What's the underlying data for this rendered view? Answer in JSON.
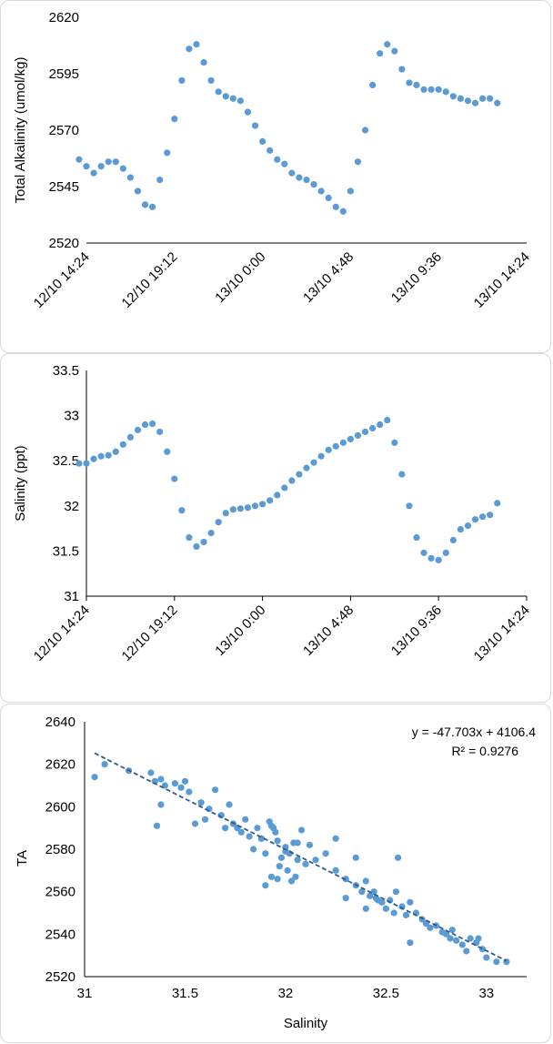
{
  "colors": {
    "marker": "#5b9bd5",
    "axis": "#000000",
    "trendline": "#2e5b8f",
    "panel_border": "#d9d9d9"
  },
  "chart_data": [
    {
      "type": "scatter",
      "title": "",
      "xlabel": "",
      "ylabel": "Total Alkalinity (umol/kg)",
      "ylim": [
        2520,
        2620
      ],
      "yticks": [
        2520,
        2545,
        2570,
        2595,
        2620
      ],
      "x_tick_labels": [
        "12/10 14:24",
        "12/10 19:12",
        "13/10 0:00",
        "13/10 4:48",
        "13/10 9:36",
        "13/10 14:24"
      ],
      "x_unit": "hours from 12/10 14:24",
      "xlim": [
        0,
        24
      ],
      "grid": false,
      "series": [
        {
          "x": [
            -0.4,
            0,
            0.4,
            0.8,
            1.2,
            1.6,
            2.0,
            2.4,
            2.8,
            3.2,
            3.6,
            4.0,
            4.4,
            4.8,
            5.2,
            5.6,
            6.0,
            6.4,
            6.8,
            7.2,
            7.6,
            8.0,
            8.4,
            8.8,
            9.2,
            9.6,
            10.0,
            10.4,
            10.8,
            11.2,
            11.6,
            12.0,
            12.4,
            12.8,
            13.2,
            13.6,
            14.0,
            14.4,
            14.8,
            15.2,
            15.6,
            16.0,
            16.4,
            16.8,
            17.2,
            17.6,
            18.0,
            18.4,
            18.8,
            19.2,
            19.6,
            20.0,
            20.4,
            20.8,
            21.2,
            21.6,
            22.0,
            22.4
          ],
          "y": [
            2557,
            2554,
            2551,
            2554,
            2556,
            2556,
            2553,
            2549,
            2543,
            2537,
            2536,
            2548,
            2560,
            2575,
            2592,
            2606,
            2608,
            2600,
            2592,
            2587,
            2585,
            2584,
            2583,
            2578,
            2572,
            2565,
            2561,
            2557,
            2555,
            2551,
            2549,
            2548,
            2546,
            2543,
            2540,
            2536,
            2534,
            2543,
            2556,
            2570,
            2590,
            2604,
            2608,
            2605,
            2597,
            2591,
            2590,
            2588,
            2588,
            2588,
            2587,
            2585,
            2584,
            2583,
            2582,
            2584,
            2584,
            2582
          ]
        }
      ]
    },
    {
      "type": "scatter",
      "title": "",
      "xlabel": "",
      "ylabel": "Salinity (ppt)",
      "ylim": [
        31,
        33.5
      ],
      "yticks": [
        "31",
        "31.5",
        "32",
        "32.5",
        "33",
        "33.5"
      ],
      "x_tick_labels": [
        "12/10 14:24",
        "12/10 19:12",
        "13/10 0:00",
        "13/10 4:48",
        "13/10 9:36",
        "13/10 14:24"
      ],
      "x_unit": "hours from 12/10 14:24",
      "xlim": [
        0,
        24
      ],
      "grid": false,
      "series": [
        {
          "x": [
            -0.4,
            0,
            0.4,
            0.8,
            1.2,
            1.6,
            2.0,
            2.4,
            2.8,
            3.2,
            3.6,
            4.0,
            4.4,
            4.8,
            5.2,
            5.6,
            6.0,
            6.4,
            6.8,
            7.2,
            7.6,
            8.0,
            8.4,
            8.8,
            9.2,
            9.6,
            10.0,
            10.4,
            10.8,
            11.2,
            11.6,
            12.0,
            12.4,
            12.8,
            13.2,
            13.6,
            14.0,
            14.4,
            14.8,
            15.2,
            15.6,
            16.0,
            16.4,
            16.8,
            17.2,
            17.6,
            18.0,
            18.4,
            18.8,
            19.2,
            19.6,
            20.0,
            20.4,
            20.8,
            21.2,
            21.6,
            22.0,
            22.4
          ],
          "y": [
            32.47,
            32.47,
            32.52,
            32.55,
            32.56,
            32.6,
            32.68,
            32.76,
            32.84,
            32.9,
            32.91,
            32.82,
            32.6,
            32.3,
            31.95,
            31.65,
            31.55,
            31.6,
            31.7,
            31.82,
            31.92,
            31.96,
            31.97,
            31.98,
            32.0,
            32.02,
            32.06,
            32.12,
            32.2,
            32.28,
            32.35,
            32.42,
            32.48,
            32.55,
            32.62,
            32.66,
            32.7,
            32.74,
            32.78,
            32.82,
            32.86,
            32.9,
            32.95,
            32.7,
            32.35,
            32.0,
            31.65,
            31.48,
            31.42,
            31.4,
            31.48,
            31.62,
            31.74,
            31.78,
            31.85,
            31.88,
            31.9,
            32.03
          ]
        }
      ]
    },
    {
      "type": "scatter",
      "title": "",
      "xlabel": "Salinity",
      "ylabel": "TA",
      "xlim": [
        31,
        33.2
      ],
      "ylim": [
        2520,
        2640
      ],
      "xticks": [
        "31",
        "31.5",
        "32",
        "32.5",
        "33"
      ],
      "yticks": [
        "2520",
        "2540",
        "2560",
        "2580",
        "2600",
        "2620",
        "2640"
      ],
      "grid": false,
      "trendline": {
        "slope": -47.703,
        "intercept": 4106.4,
        "x_range": [
          31.05,
          33.1
        ]
      },
      "annotation_equation": "y = -47.703x + 4106.4",
      "annotation_r2": "R² = 0.9276",
      "series": [
        {
          "x": [
            31.05,
            31.1,
            31.22,
            31.33,
            31.35,
            31.38,
            31.4,
            31.36,
            31.45,
            31.48,
            31.5,
            31.52,
            31.55,
            31.58,
            31.62,
            31.65,
            31.68,
            31.7,
            31.72,
            31.74,
            31.76,
            31.78,
            31.8,
            31.82,
            31.84,
            31.86,
            31.88,
            31.9,
            31.92,
            31.94,
            31.95,
            31.96,
            31.98,
            32.0,
            32.02,
            32.04,
            32.06,
            32.08,
            31.9,
            31.93,
            31.97,
            32.01,
            32.03,
            32.05,
            32.1,
            32.15,
            32.2,
            32.25,
            32.3,
            32.35,
            32.38,
            32.4,
            32.42,
            32.44,
            32.46,
            32.48,
            32.5,
            32.52,
            32.54,
            32.56,
            32.58,
            32.6,
            32.62,
            32.65,
            32.68,
            32.7,
            32.75,
            32.78,
            32.8,
            32.82,
            32.85,
            32.88,
            32.9,
            32.92,
            32.95,
            32.98,
            33.0,
            33.05,
            33.1,
            31.38,
            31.6,
            31.88,
            32.0,
            32.35,
            32.55,
            32.4,
            32.3,
            31.96,
            32.12,
            32.25,
            32.45,
            32.62,
            32.72,
            32.83,
            32.96,
            31.93,
            32.06
          ],
          "y": [
            2614,
            2620,
            2617,
            2616,
            2612,
            2613,
            2610,
            2591,
            2611,
            2609,
            2612,
            2607,
            2592,
            2602,
            2599,
            2608,
            2596,
            2590,
            2601,
            2592,
            2590,
            2588,
            2594,
            2586,
            2580,
            2590,
            2585,
            2578,
            2593,
            2590,
            2588,
            2584,
            2576,
            2581,
            2578,
            2583,
            2575,
            2589,
            2563,
            2567,
            2572,
            2570,
            2565,
            2567,
            2573,
            2575,
            2578,
            2570,
            2566,
            2563,
            2560,
            2565,
            2558,
            2560,
            2556,
            2555,
            2552,
            2556,
            2550,
            2576,
            2553,
            2549,
            2555,
            2550,
            2547,
            2545,
            2544,
            2541,
            2540,
            2538,
            2537,
            2535,
            2532,
            2538,
            2536,
            2533,
            2529,
            2527,
            2527,
            2601,
            2594,
            2585,
            2579,
            2576,
            2560,
            2552,
            2557,
            2566,
            2582,
            2585,
            2557,
            2536,
            2543,
            2542,
            2538,
            2591,
            2583
          ]
        }
      ]
    }
  ]
}
